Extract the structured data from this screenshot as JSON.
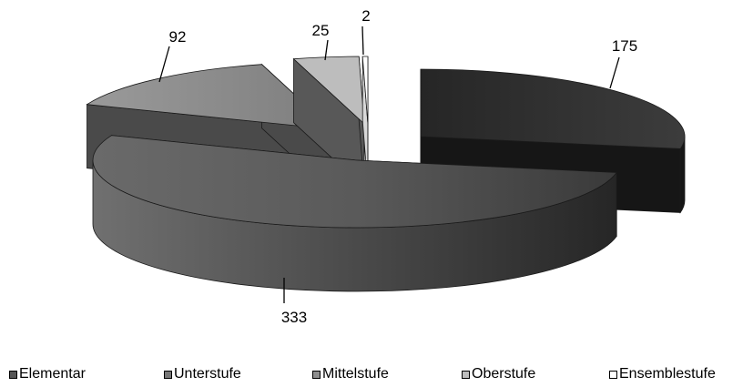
{
  "chart_data": {
    "type": "pie",
    "variant": "exploded-3d",
    "categories": [
      "Elementar",
      "Unterstufe",
      "Mittelstufe",
      "Oberstufe",
      "Ensemblestufe"
    ],
    "values": [
      175,
      333,
      92,
      25,
      2
    ],
    "data_labels": [
      "175",
      "333",
      "92",
      "25",
      "2"
    ],
    "legend": {
      "position": "bottom",
      "entries": [
        "Elementar",
        "Unterstufe",
        "Mittelstufe",
        "Oberstufe",
        "Ensemblestufe"
      ]
    },
    "colors": [
      "#2f2f2f",
      "#515151",
      "#8e8e8e",
      "#bdbdbd",
      "#ffffff"
    ],
    "side_colors": [
      "#161616",
      "#3a3a3a",
      "#4a4a4a",
      "#585858",
      "#d8d8d8"
    ],
    "title": "",
    "grid": false
  }
}
